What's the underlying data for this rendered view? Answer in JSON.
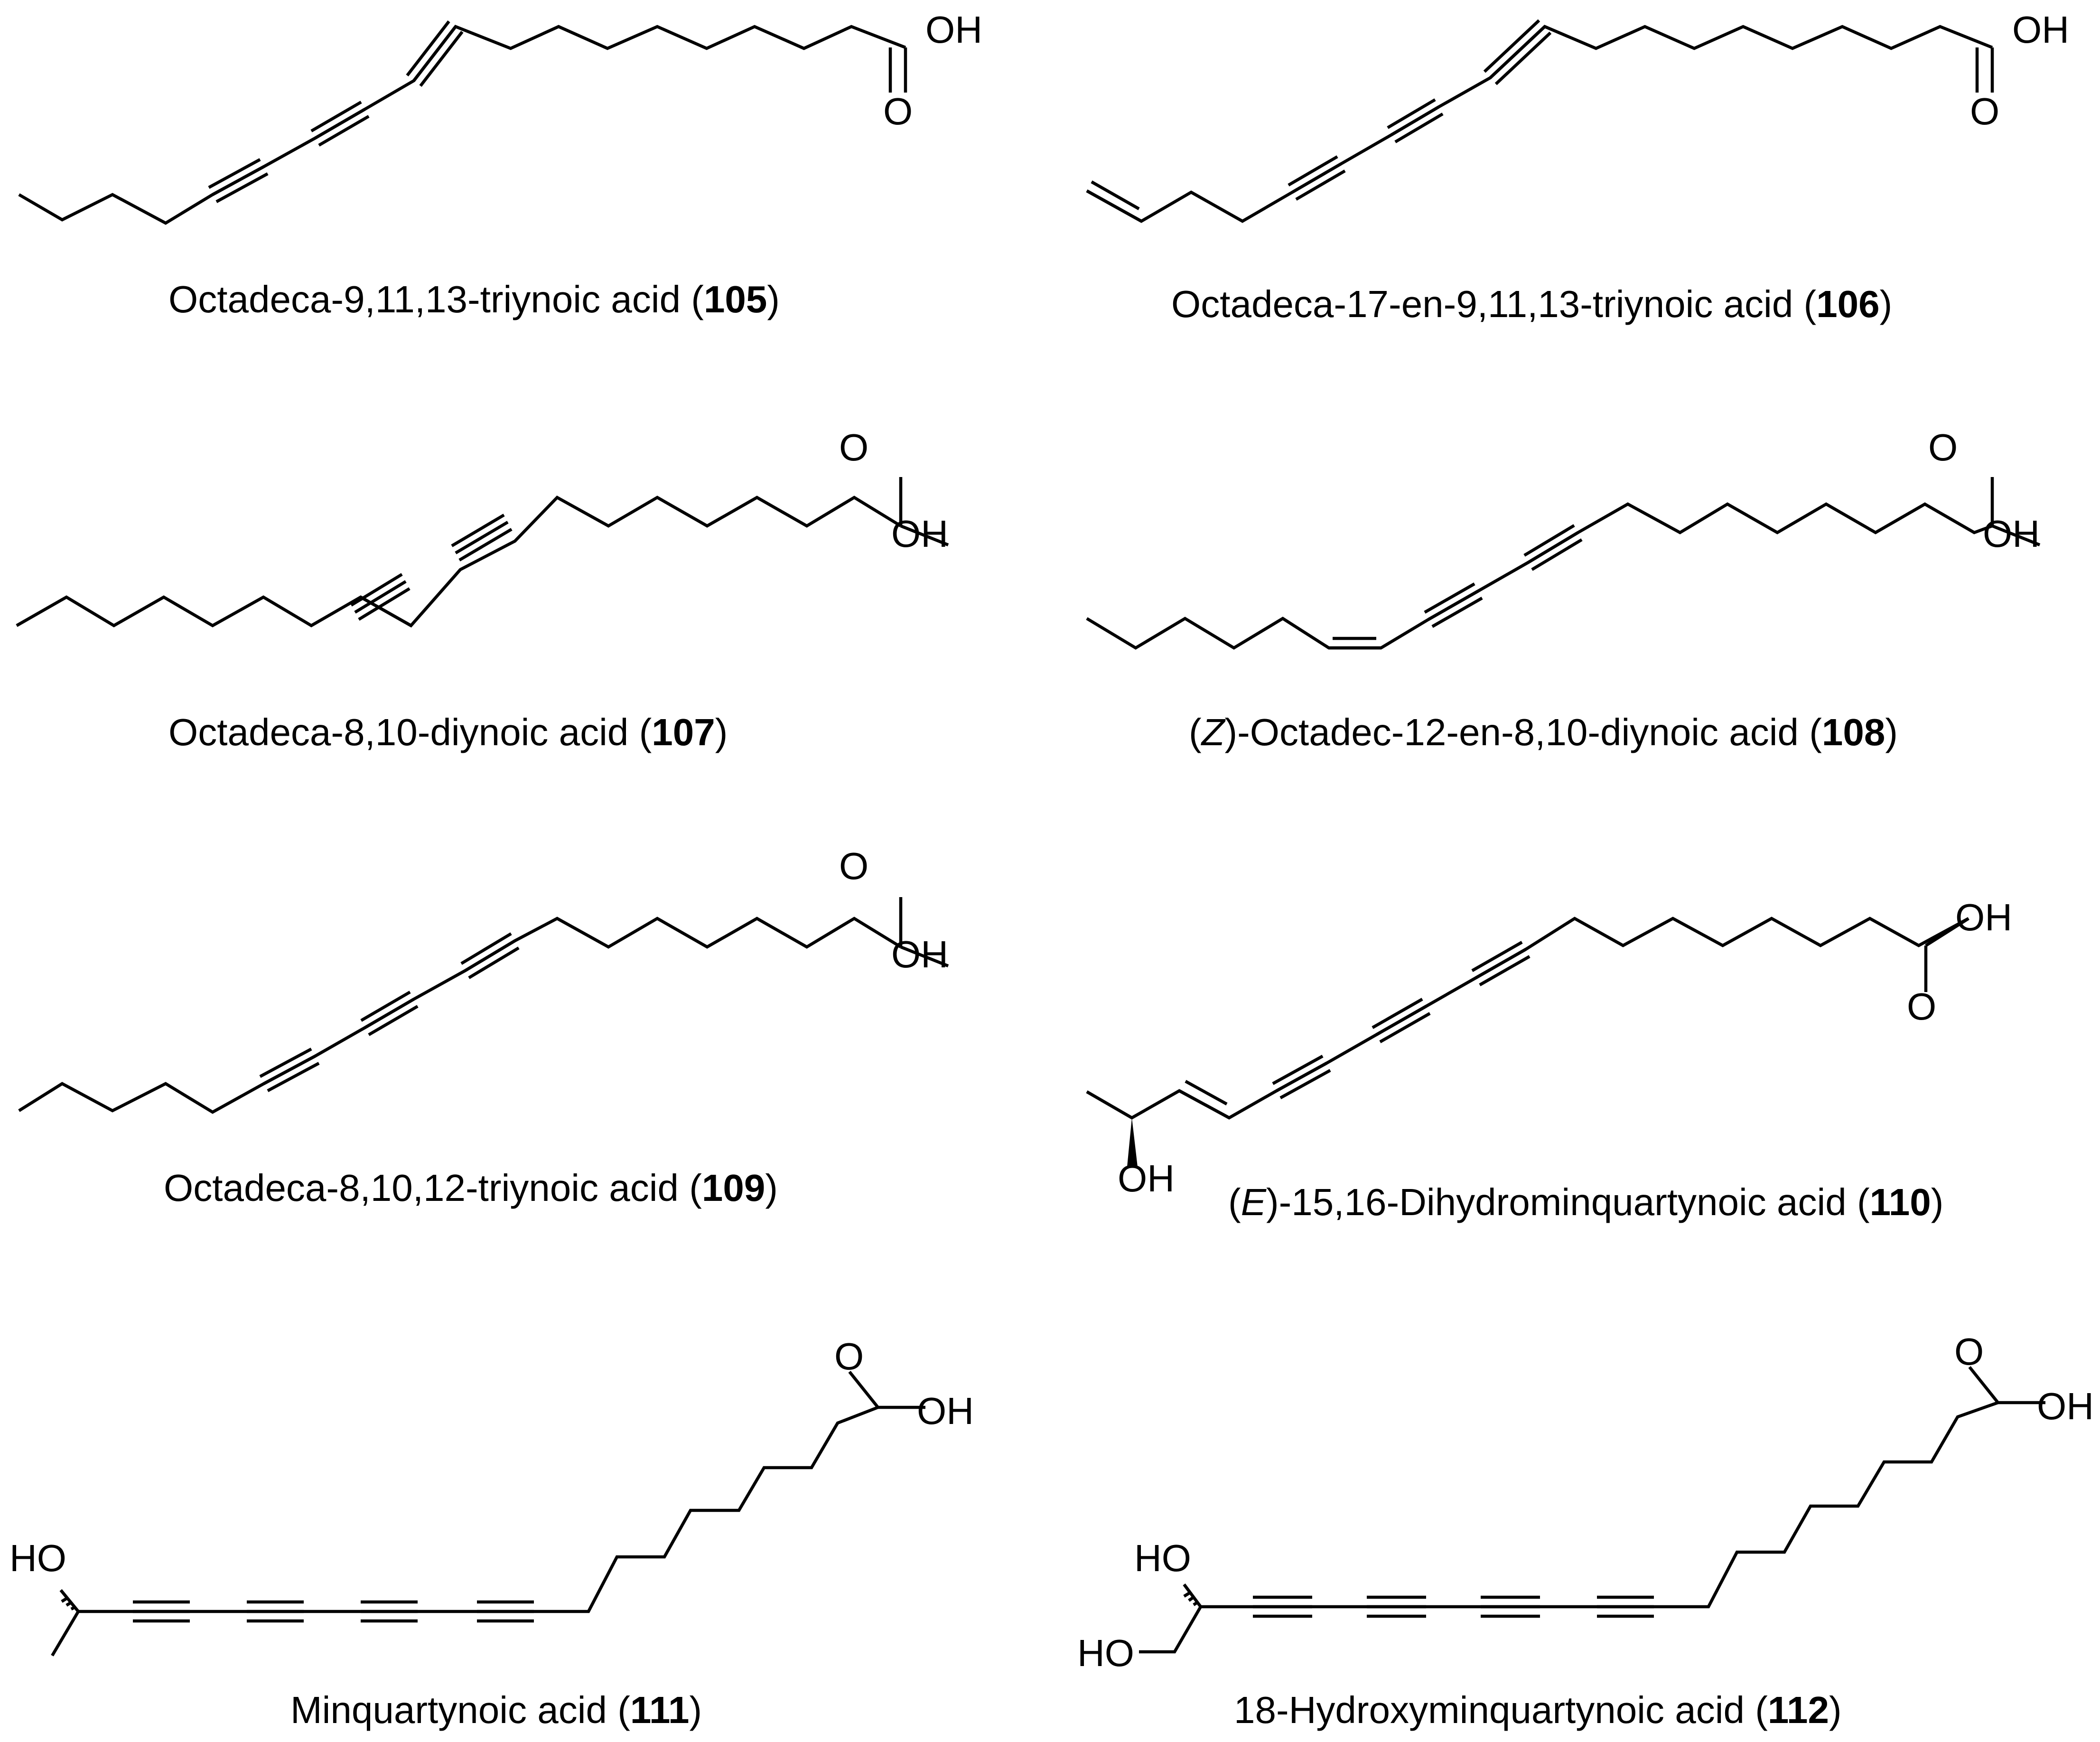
{
  "figure": {
    "structures": [
      {
        "id": "s105",
        "caption": {
          "prefix": "",
          "italic": "",
          "name": "Octadeca-9,11,13-triynoic acid (",
          "number": "105",
          "suffix": ")"
        },
        "atoms": [
          "OH",
          "O"
        ]
      },
      {
        "id": "s106",
        "caption": {
          "prefix": "",
          "italic": "",
          "name": "Octadeca-17-en-9,11,13-triynoic acid (",
          "number": "106",
          "suffix": ")"
        },
        "atoms": [
          "OH",
          "O"
        ]
      },
      {
        "id": "s107",
        "caption": {
          "prefix": "",
          "italic": "",
          "name": "Octadeca-8,10-diynoic acid (",
          "number": "107",
          "suffix": ")"
        },
        "atoms": [
          "O",
          "OH"
        ]
      },
      {
        "id": "s108",
        "caption": {
          "prefix": "(",
          "italic": "Z",
          "name": ")-Octadec-12-en-8,10-diynoic acid (",
          "number": "108",
          "suffix": ")"
        },
        "atoms": [
          "O",
          "OH"
        ]
      },
      {
        "id": "s109",
        "caption": {
          "prefix": "",
          "italic": "",
          "name": "Octadeca-8,10,12-triynoic acid (",
          "number": "109",
          "suffix": ")"
        },
        "atoms": [
          "O",
          "OH"
        ]
      },
      {
        "id": "s110",
        "caption": {
          "prefix": "(",
          "italic": "E",
          "name": ")-15,16-Dihydrominquartynoic acid (",
          "number": "110",
          "suffix": ")"
        },
        "atoms": [
          "OH",
          "O",
          "OH"
        ]
      },
      {
        "id": "s111",
        "caption": {
          "prefix": "",
          "italic": "",
          "name": "Minquartynoic acid (",
          "number": "111",
          "suffix": ")"
        },
        "atoms": [
          "O",
          "OH",
          "HO"
        ]
      },
      {
        "id": "s112",
        "caption": {
          "prefix": "",
          "italic": "",
          "name": "18-Hydroxyminquartynoic acid (",
          "number": "112",
          "suffix": ")"
        },
        "atoms": [
          "O",
          "OH",
          "HO",
          "HO"
        ]
      }
    ]
  }
}
